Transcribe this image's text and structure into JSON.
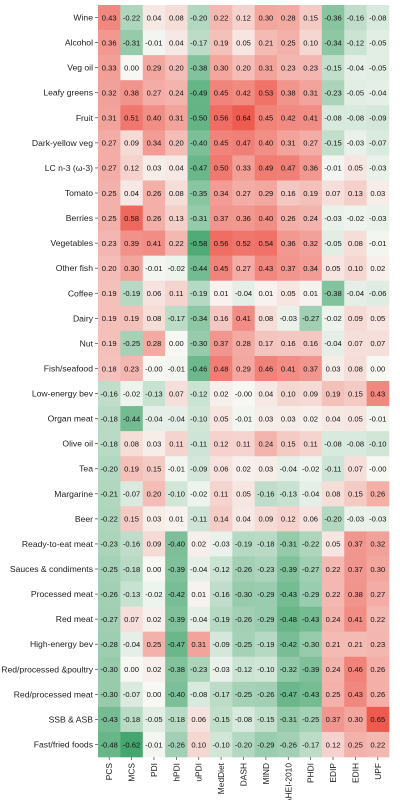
{
  "chart_data": {
    "type": "heatmap",
    "title": "",
    "xlabel": "",
    "ylabel": "",
    "color_low": "#3fa36a",
    "color_mid": "#f7f7f4",
    "color_high": "#ee5a4f",
    "value_range": [
      -0.65,
      0.65
    ],
    "columns": [
      "PCS",
      "MCS",
      "PDI",
      "hPDI",
      "uPDI",
      "MedDiet",
      "DASH",
      "MIND",
      "AHEI-2010",
      "PHDI",
      "EDIP",
      "EDIH",
      "UPF"
    ],
    "rows": [
      "Wine",
      "Alcohol",
      "Veg oil",
      "Leafy greens",
      "Fruit",
      "Dark-yellow veg",
      "LC n-3 (ω-3)",
      "Tomato",
      "Berries",
      "Vegetables",
      "Other fish",
      "Coffee",
      "Dairy",
      "Nut",
      "Fish/seafood",
      "Low-energy bev",
      "Organ meat",
      "Olive oil",
      "Tea",
      "Margarine",
      "Beer",
      "Ready-to-eat meat",
      "Sauces & condiments",
      "Processed meat",
      "Red meat",
      "High-energy bev",
      "Red/processed &poultry",
      "Red/processed meat",
      "SSB & ASB",
      "Fast/fried foods"
    ],
    "values": [
      [
        "0.43",
        "-0.22",
        "0.04",
        "0.08",
        "-0.20",
        "0.22",
        "0.12",
        "0.30",
        "0.28",
        "0.15",
        "-0.36",
        "-0.16",
        "-0.08"
      ],
      [
        "0.36",
        "-0.31",
        "-0.01",
        "0.04",
        "-0.17",
        "0.19",
        "0.05",
        "0.21",
        "0.25",
        "0.10",
        "-0.34",
        "-0.12",
        "-0.05"
      ],
      [
        "0.33",
        "0.00",
        "0.29",
        "0.20",
        "-0.38",
        "0.30",
        "0.20",
        "0.31",
        "0.23",
        "0.23",
        "-0.15",
        "-0.04",
        "-0.05"
      ],
      [
        "0.32",
        "0.38",
        "0.27",
        "0.24",
        "-0.49",
        "0.45",
        "0.42",
        "0.53",
        "0.38",
        "0.31",
        "-0.23",
        "-0.05",
        "-0.04"
      ],
      [
        "0.31",
        "0.51",
        "0.40",
        "0.31",
        "-0.50",
        "0.56",
        "0.64",
        "0.45",
        "0.42",
        "0.41",
        "-0.08",
        "-0.08",
        "-0.09"
      ],
      [
        "0.27",
        "0.09",
        "0.34",
        "0.20",
        "-0.40",
        "0.45",
        "0.47",
        "0.40",
        "0.31",
        "0.27",
        "-0.15",
        "-0.03",
        "-0.07"
      ],
      [
        "0.27",
        "0.12",
        "0.03",
        "0.04",
        "-0.47",
        "0.50",
        "0.33",
        "0.49",
        "0.47",
        "0.36",
        "-0.01",
        "0.05",
        "-0.03"
      ],
      [
        "0.25",
        "0.04",
        "0.26",
        "0.08",
        "-0.35",
        "0.34",
        "0.27",
        "0.29",
        "0.16",
        "0.19",
        "0.07",
        "0.13",
        "0.03"
      ],
      [
        "0.25",
        "0.58",
        "0.26",
        "0.13",
        "-0.31",
        "0.37",
        "0.36",
        "0.40",
        "0.26",
        "0.24",
        "-0.03",
        "-0.02",
        "-0.03"
      ],
      [
        "0.23",
        "0.39",
        "0.41",
        "0.22",
        "-0.58",
        "0.56",
        "0.52",
        "0.54",
        "0.36",
        "0.32",
        "-0.05",
        "0.08",
        "-0.01"
      ],
      [
        "0.20",
        "0.30",
        "-0.01",
        "-0.02",
        "-0.44",
        "0.45",
        "0.27",
        "0.43",
        "0.37",
        "0.34",
        "0.05",
        "0.10",
        "0.02"
      ],
      [
        "0.19",
        "-0.19",
        "0.06",
        "0.11",
        "-0.19",
        "0.01",
        "-0.04",
        "0.01",
        "0.05",
        "0.01",
        "-0.38",
        "-0.04",
        "-0.06"
      ],
      [
        "0.19",
        "0.19",
        "0.08",
        "-0.17",
        "-0.34",
        "0.16",
        "0.41",
        "0.08",
        "-0.03",
        "-0.27",
        "-0.02",
        "0.09",
        "0.05"
      ],
      [
        "0.19",
        "-0.25",
        "0.28",
        "0.00",
        "-0.30",
        "0.37",
        "0.28",
        "0.17",
        "0.16",
        "0.16",
        "-0.04",
        "0.07",
        "0.07"
      ],
      [
        "0.18",
        "0.23",
        "-0.00",
        "-0.01",
        "-0.46",
        "0.48",
        "0.29",
        "0.46",
        "0.41",
        "0.37",
        "0.03",
        "0.08",
        "0.00"
      ],
      [
        "-0.16",
        "-0.02",
        "-0.13",
        "0.07",
        "-0.12",
        "0.02",
        "-0.00",
        "0.04",
        "0.10",
        "0.09",
        "0.19",
        "0.15",
        "0.43"
      ],
      [
        "-0.18",
        "-0.44",
        "-0.04",
        "-0.04",
        "-0.10",
        "0.05",
        "-0.01",
        "0.03",
        "0.03",
        "0.02",
        "0.04",
        "0.05",
        "-0.01"
      ],
      [
        "-0.18",
        "0.08",
        "0.03",
        "0.11",
        "-0.11",
        "0.12",
        "0.11",
        "0.24",
        "0.15",
        "0.11",
        "-0.08",
        "-0.08",
        "-0.10"
      ],
      [
        "-0.20",
        "0.19",
        "0.15",
        "-0.01",
        "-0.09",
        "0.06",
        "0.02",
        "0.03",
        "-0.04",
        "-0.02",
        "-0.11",
        "0.07",
        "-0.00"
      ],
      [
        "-0.21",
        "-0.07",
        "0.20",
        "-0.10",
        "-0.02",
        "0.11",
        "0.05",
        "-0.16",
        "-0.13",
        "-0.04",
        "0.08",
        "0.15",
        "0.26"
      ],
      [
        "-0.22",
        "0.15",
        "0.03",
        "0.01",
        "-0.11",
        "0.14",
        "0.04",
        "0.09",
        "0.12",
        "0.06",
        "-0.20",
        "-0.03",
        "-0.03"
      ],
      [
        "-0.23",
        "-0.16",
        "0.09",
        "-0.40",
        "0.02",
        "-0.03",
        "-0.19",
        "-0.18",
        "-0.31",
        "-0.22",
        "0.05",
        "0.37",
        "0.32"
      ],
      [
        "-0.25",
        "-0.18",
        "0.00",
        "-0.39",
        "-0.04",
        "-0.12",
        "-0.26",
        "-0.23",
        "-0.39",
        "-0.27",
        "0.22",
        "0.37",
        "0.30"
      ],
      [
        "-0.26",
        "-0.13",
        "-0.02",
        "-0.42",
        "0.01",
        "-0.16",
        "-0.30",
        "-0.29",
        "-0.43",
        "-0.29",
        "0.22",
        "0.38",
        "0.27"
      ],
      [
        "-0.27",
        "0.07",
        "0.02",
        "-0.39",
        "-0.04",
        "-0.19",
        "-0.26",
        "-0.29",
        "-0.48",
        "-0.43",
        "0.24",
        "0.41",
        "0.22"
      ],
      [
        "-0.28",
        "-0.04",
        "0.25",
        "-0.47",
        "0.31",
        "-0.09",
        "-0.25",
        "-0.19",
        "-0.42",
        "-0.30",
        "0.21",
        "0.21",
        "0.23"
      ],
      [
        "-0.30",
        "0.00",
        "0.02",
        "-0.38",
        "-0.23",
        "-0.03",
        "-0.12",
        "-0.10",
        "-0.32",
        "-0.39",
        "0.24",
        "0.46",
        "0.26"
      ],
      [
        "-0.30",
        "-0.07",
        "0.00",
        "-0.40",
        "-0.08",
        "-0.17",
        "-0.25",
        "-0.26",
        "-0.47",
        "-0.43",
        "0.25",
        "0.43",
        "0.26"
      ],
      [
        "-0.43",
        "-0.18",
        "-0.05",
        "-0.18",
        "0.06",
        "-0.15",
        "-0.08",
        "-0.15",
        "-0.31",
        "-0.25",
        "0.37",
        "0.30",
        "0.65"
      ],
      [
        "-0.48",
        "-0.62",
        "-0.01",
        "-0.26",
        "0.10",
        "-0.10",
        "-0.20",
        "-0.29",
        "-0.26",
        "-0.17",
        "0.12",
        "0.25",
        "0.22"
      ]
    ]
  }
}
